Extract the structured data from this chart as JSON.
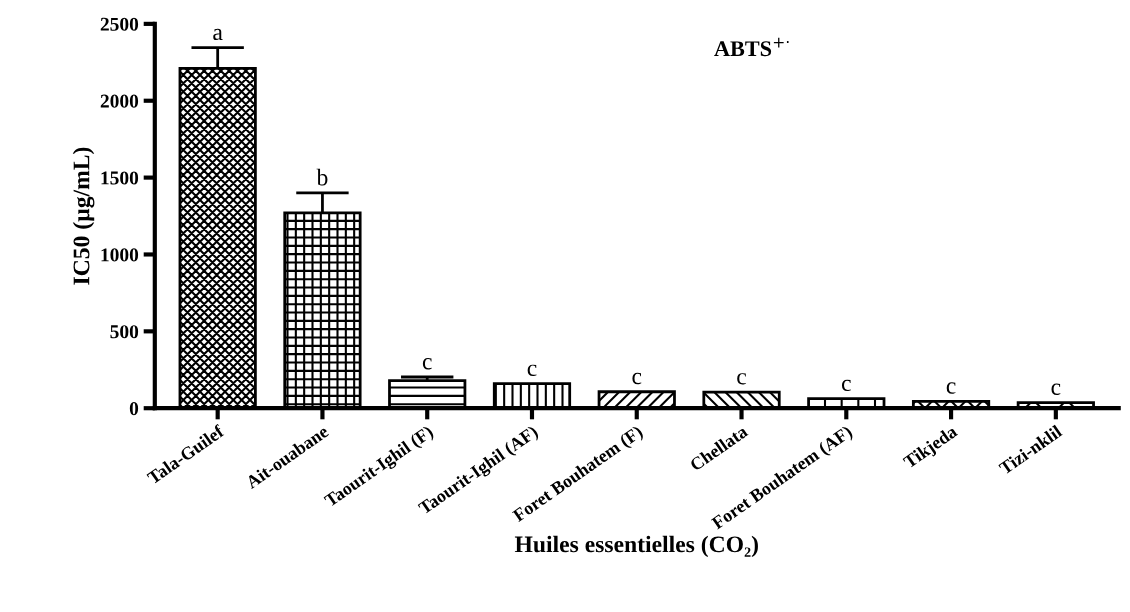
{
  "chart_data": {
    "type": "bar",
    "title": "ABTS$^{+·}$",
    "xlabel": "Huiles essentielles (CO₂)",
    "ylabel": "IC50 (µg/mL)",
    "categories": [
      "Tala-Guilef",
      "Ait-ouabane",
      "Taourit-Ighil (F)",
      "Taourit-Ighil (AF)",
      "Foret Bouhatem (F)",
      "Chellata",
      "Foret Bouhatem (AF)",
      "Tikjeda",
      "Tizi-nklil"
    ],
    "values": [
      2210,
      1270,
      180,
      160,
      107,
      105,
      62,
      45,
      37
    ],
    "errors": [
      [
        2210,
        2345
      ],
      [
        1270,
        1400
      ],
      [
        180,
        203
      ],
      null,
      null,
      null,
      null,
      null,
      null
    ],
    "colors": [
      "#000000",
      "#000000",
      "#000000",
      "#000000",
      "#000000",
      "#000000",
      "#000000",
      "#000000",
      "#000000"
    ],
    "ylim": [
      0,
      2500
    ],
    "yticks": [
      0,
      500,
      1000,
      1500,
      2000,
      2500
    ],
    "grid": false,
    "legend": false,
    "annotations": [
      "a",
      "b",
      "c",
      "c",
      "c",
      "c",
      "c",
      "c",
      "c"
    ]
  }
}
